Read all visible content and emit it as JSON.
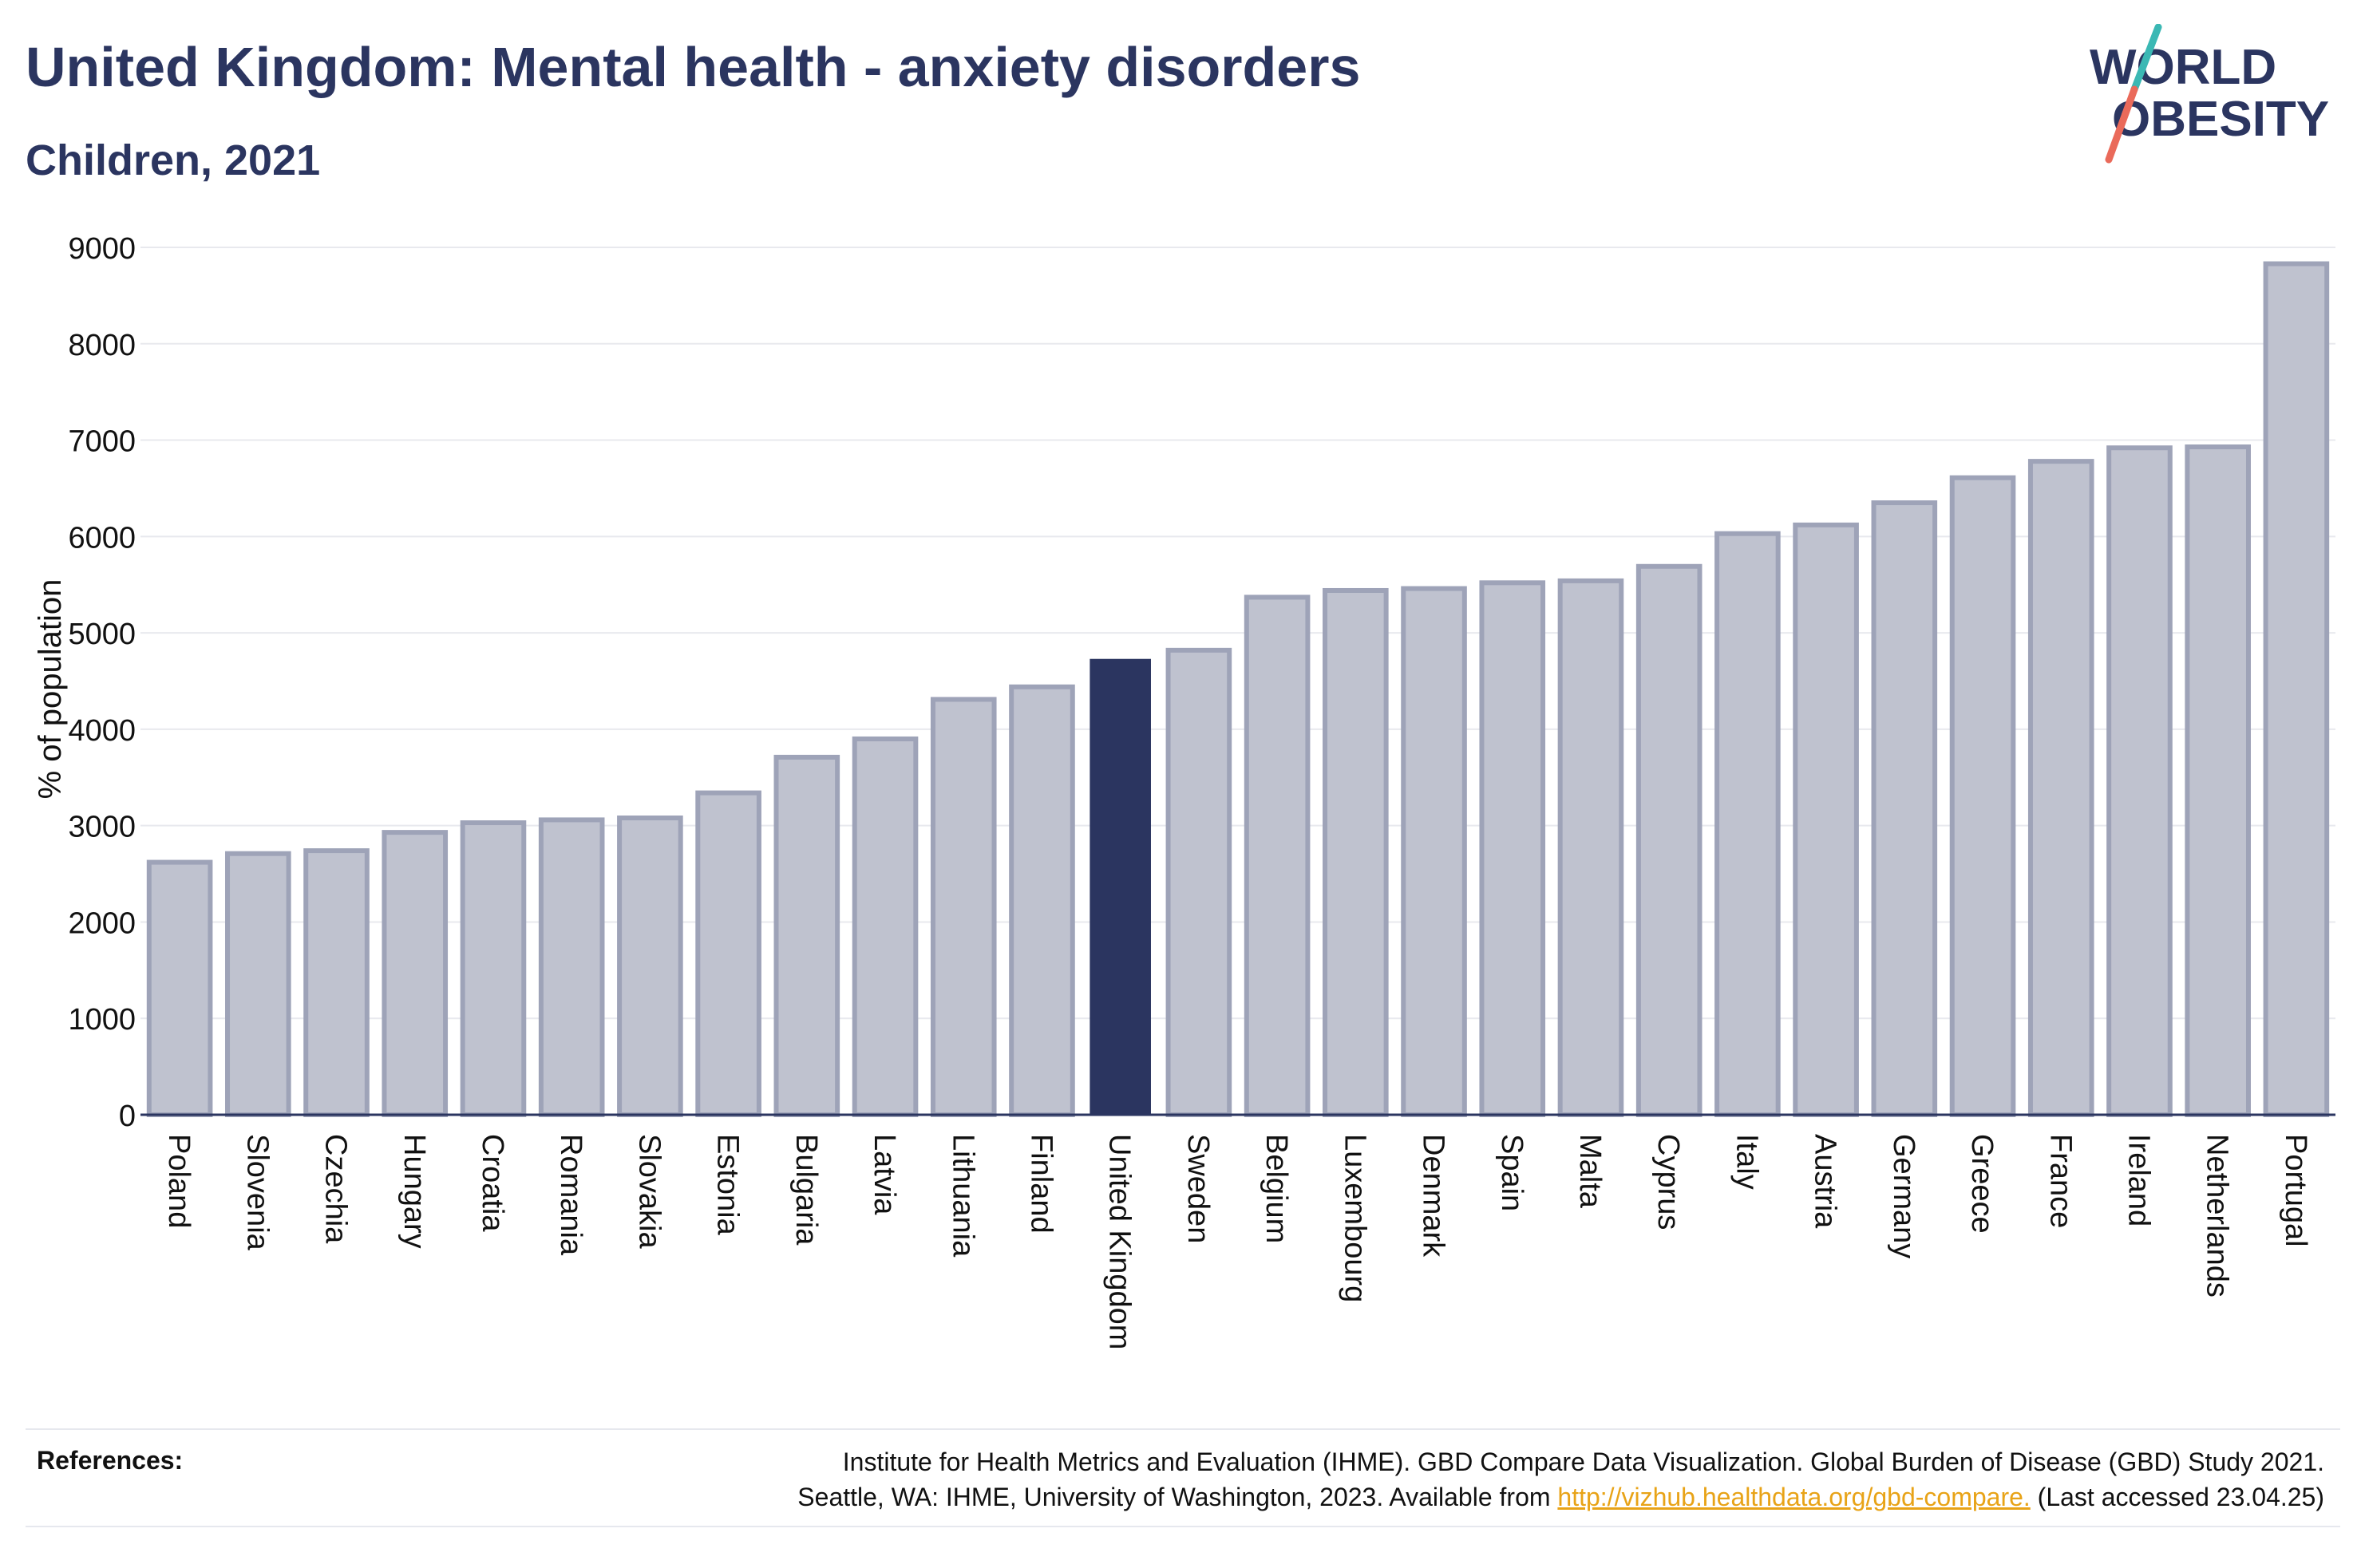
{
  "header": {
    "title": "United Kingdom: Mental health - anxiety disorders",
    "subtitle": "Children, 2021"
  },
  "logo": {
    "line1": "WORLD",
    "line2": "OBESITY",
    "colors": {
      "text": "#2b3560",
      "slash_teal": "#3bb8b4",
      "slash_coral": "#ea6a5a"
    }
  },
  "chart_data": {
    "type": "bar",
    "title": "United Kingdom: Mental health - anxiety disorders",
    "subtitle": "Children, 2021",
    "xlabel": "",
    "ylabel": "% of population",
    "ylim": [
      0,
      9000
    ],
    "yticks": [
      0,
      1000,
      2000,
      3000,
      4000,
      5000,
      6000,
      7000,
      8000,
      9000
    ],
    "grid": true,
    "highlight": "United Kingdom",
    "colors": {
      "bar": "#bfc2cf",
      "bar_edge": "#9ea3b8",
      "highlight": "#2b3560",
      "grid": "#e8e9ee",
      "axis": "#2b3560"
    },
    "categories": [
      "Poland",
      "Slovenia",
      "Czechia",
      "Hungary",
      "Croatia",
      "Romania",
      "Slovakia",
      "Estonia",
      "Bulgaria",
      "Latvia",
      "Lithuania",
      "Finland",
      "United Kingdom",
      "Sweden",
      "Belgium",
      "Luxembourg",
      "Denmark",
      "Spain",
      "Malta",
      "Cyprus",
      "Italy",
      "Austria",
      "Germany",
      "Greece",
      "France",
      "Ireland",
      "Netherlands",
      "Portugal"
    ],
    "values": [
      2620,
      2710,
      2740,
      2930,
      3030,
      3060,
      3080,
      3340,
      3710,
      3900,
      4310,
      4440,
      4730,
      4820,
      5370,
      5440,
      5460,
      5520,
      5540,
      5690,
      6030,
      6120,
      6350,
      6610,
      6780,
      6920,
      6930,
      8830
    ]
  },
  "references": {
    "label": "References:",
    "line1": "Institute for Health Metrics and Evaluation (IHME). GBD Compare Data Visualization. Global Burden of Disease (GBD) Study 2021.",
    "line2_prefix": "Seattle, WA: IHME, University of Washington, 2023. Available from ",
    "link": "http://vizhub.healthdata.org/gbd-compare.",
    "line2_suffix": " (Last accessed 23.04.25)"
  }
}
